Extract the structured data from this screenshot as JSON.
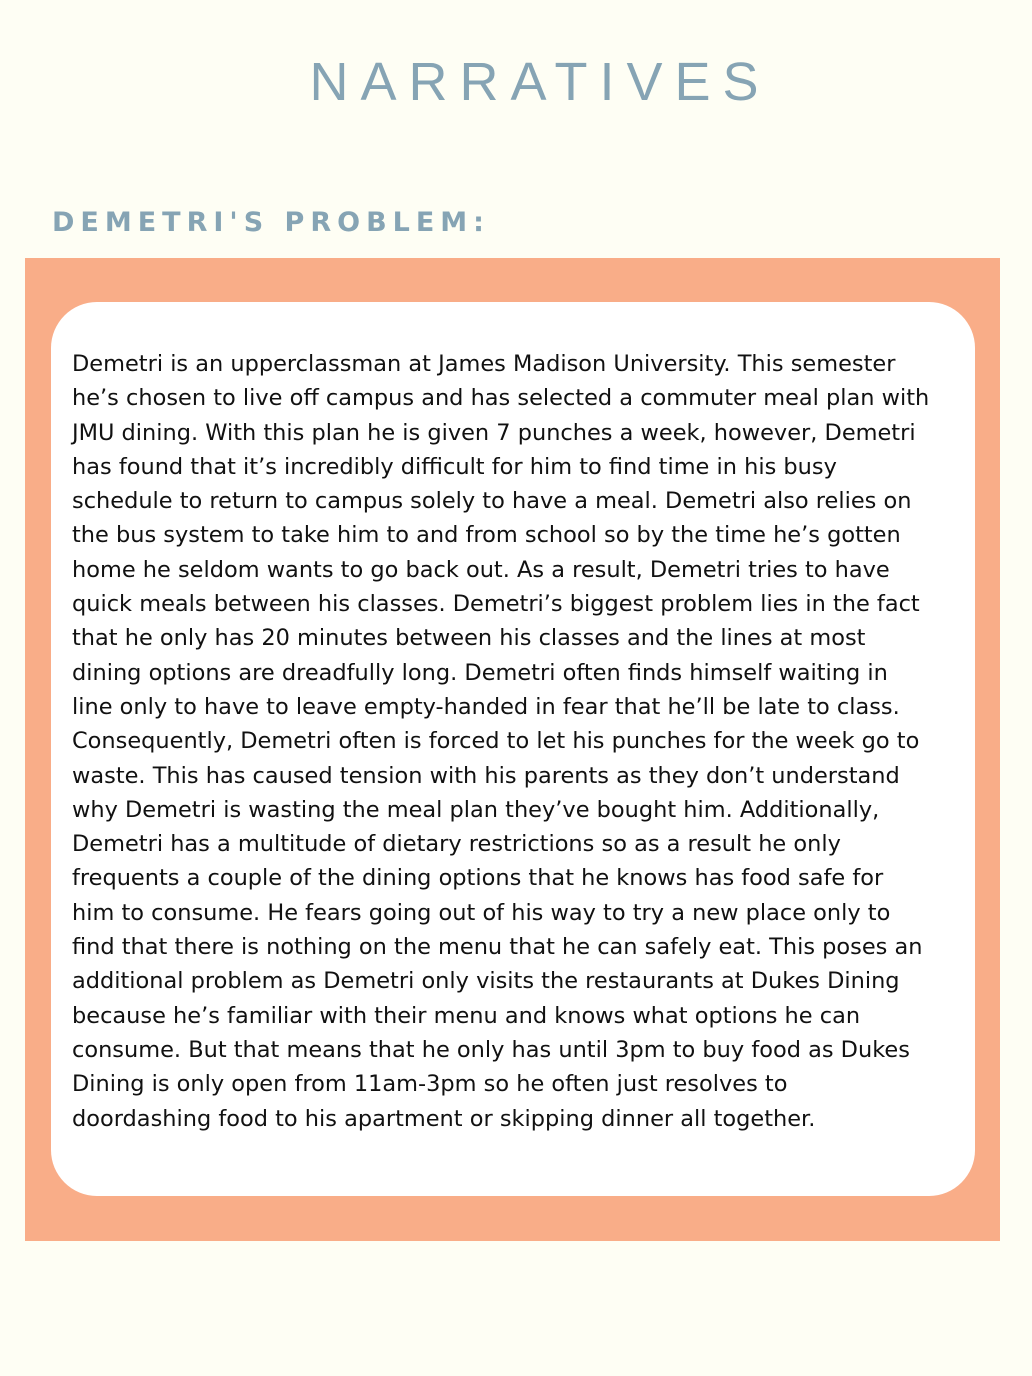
{
  "page": {
    "title": "NARRATIVES",
    "section_heading": "DEMETRI'S PROBLEM:"
  },
  "narrative": {
    "lines": [
      "Demetri is an upperclassman at James Madison University. This semester",
      "he’s chosen to live off campus and has selected a commuter meal plan with",
      "JMU dining. With this plan he is given 7 punches a week, however, Demetri",
      "has found that it’s incredibly difficult for him to find time in his busy",
      "schedule to return to campus solely to have a meal. Demetri also relies on",
      "the bus system to take him to and from school so by the time he’s gotten",
      "home he seldom wants to go back out. As a result, Demetri tries to have",
      "quick meals between his classes. Demetri’s biggest problem lies in the fact",
      "that he only has 20 minutes between his classes and the lines at most",
      "dining options are dreadfully long. Demetri often finds himself waiting in",
      "line only to have to leave empty-handed in fear that he’ll be late to class.",
      "Consequently, Demetri often is forced to let his punches for the week go to",
      "waste. This has caused tension with his parents as they don’t understand",
      "why Demetri is wasting the meal plan they’ve bought him. Additionally,",
      "Demetri has a multitude of dietary restrictions so as a result he only",
      "frequents a couple of the dining options that he knows has food safe for",
      "him to consume. He fears going out of his way to try a new place only to",
      "find that there is nothing on the menu that he can safely eat. This poses an",
      "additional problem as Demetri only visits the restaurants at Dukes Dining",
      "because he’s familiar with their menu and knows what options he can",
      "consume. But that means that he only has until 3pm to buy food as Dukes",
      "Dining is only open from 11am-3pm so he often just resolves to",
      "doordashing food to his apartment or skipping dinner all together."
    ]
  },
  "colors": {
    "background": "#fefef4",
    "heading": "#86a4b4",
    "frame": "#f9ad88",
    "card": "#ffffff",
    "text": "#111111"
  }
}
